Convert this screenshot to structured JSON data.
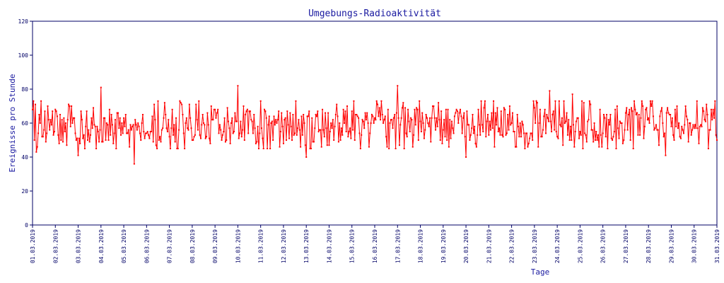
{
  "chart_data": {
    "type": "line",
    "title": "Umgebungs-Radioaktivität",
    "xlabel": "Tage",
    "ylabel": "Ereignisse pro Stunde",
    "ylim": [
      0,
      120
    ],
    "yticks": [
      0,
      20,
      40,
      60,
      80,
      100,
      120
    ],
    "xlim_days": [
      0,
      30
    ],
    "xtick_labels": [
      "01.03.2019",
      "02.03.2019",
      "03.03.2019",
      "04.03.2019",
      "05.03.2019",
      "06.03.2019",
      "07.03.2019",
      "08.03.2019",
      "09.03.2019",
      "10.03.2019",
      "11.03.2019",
      "12.03.2019",
      "13.03.2019",
      "14.03.2019",
      "15.03.2019",
      "16.03.2019",
      "17.03.2019",
      "18.03.2019",
      "19.03.2019",
      "20.03.2019",
      "21.03.2019",
      "22.03.2019",
      "23.03.2019",
      "24.03.2019",
      "25.03.2019",
      "26.03.2019",
      "27.03.2019",
      "28.03.2019",
      "29.03.2019",
      "30.03.2019",
      "31.03.2019"
    ],
    "grid": false,
    "series": [
      {
        "color": "#ff0000",
        "sampling": "hourly",
        "summary": {
          "mean": 59,
          "min": 36,
          "max": 82
        },
        "notable_points": [
          {
            "x": "01.03.2019 04:00",
            "y": 43
          },
          {
            "x": "03.03.2019 00:00",
            "y": 41
          },
          {
            "x": "04.03.2019 00:00",
            "y": 81
          },
          {
            "x": "05.03.2019 11:00",
            "y": 36
          },
          {
            "x": "10.03.2019 00:00",
            "y": 82
          },
          {
            "x": "13.03.2019 00:00",
            "y": 40
          },
          {
            "x": "17.03.2019 00:00",
            "y": 82
          },
          {
            "x": "20.03.2019 00:00",
            "y": 40
          },
          {
            "x": "23.03.2019 16:00",
            "y": 79
          },
          {
            "x": "24.03.2019 16:00",
            "y": 77
          },
          {
            "x": "28.03.2019 18:00",
            "y": 41
          },
          {
            "x": "31.03.2019 00:00",
            "y": 50
          }
        ]
      }
    ]
  }
}
